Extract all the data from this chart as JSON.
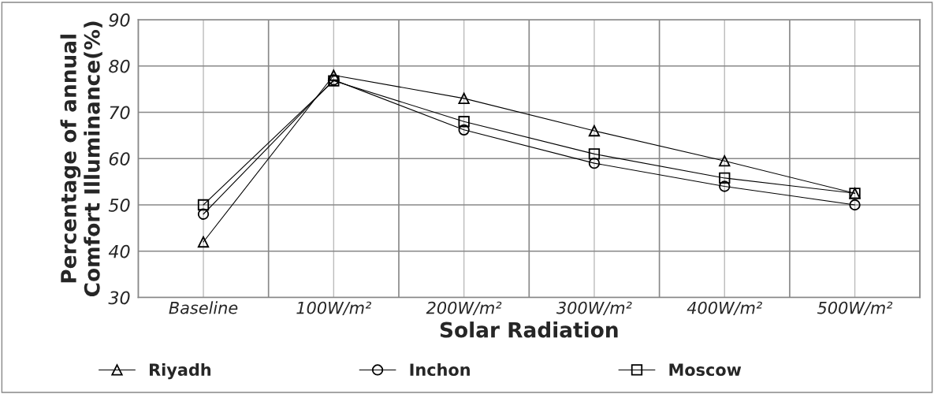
{
  "chart_data": {
    "type": "line",
    "xlabel": "Solar Radiation",
    "ylabel": "Percentage of annual\nComfort Illuminance(%)",
    "categories": [
      "Baseline",
      "100W/m²",
      "200W/m²",
      "300W/m²",
      "400W/m²",
      "500W/m²"
    ],
    "series": [
      {
        "name": "Riyadh",
        "color": "#000000",
        "marker": "triangle",
        "values": [
          42,
          78,
          73,
          66,
          59.5,
          52.5
        ]
      },
      {
        "name": "Inchon",
        "color": "#000000",
        "marker": "circle",
        "values": [
          48,
          77,
          66.2,
          59,
          54,
          50
        ]
      },
      {
        "name": "Moscow",
        "color": "#000000",
        "marker": "square",
        "values": [
          50,
          76.8,
          68,
          61,
          55.8,
          52.5
        ]
      }
    ],
    "ylim": [
      30,
      90
    ],
    "yticks": [
      30,
      40,
      50,
      60,
      70,
      80,
      90
    ],
    "grid": true,
    "legend": "bottom"
  }
}
